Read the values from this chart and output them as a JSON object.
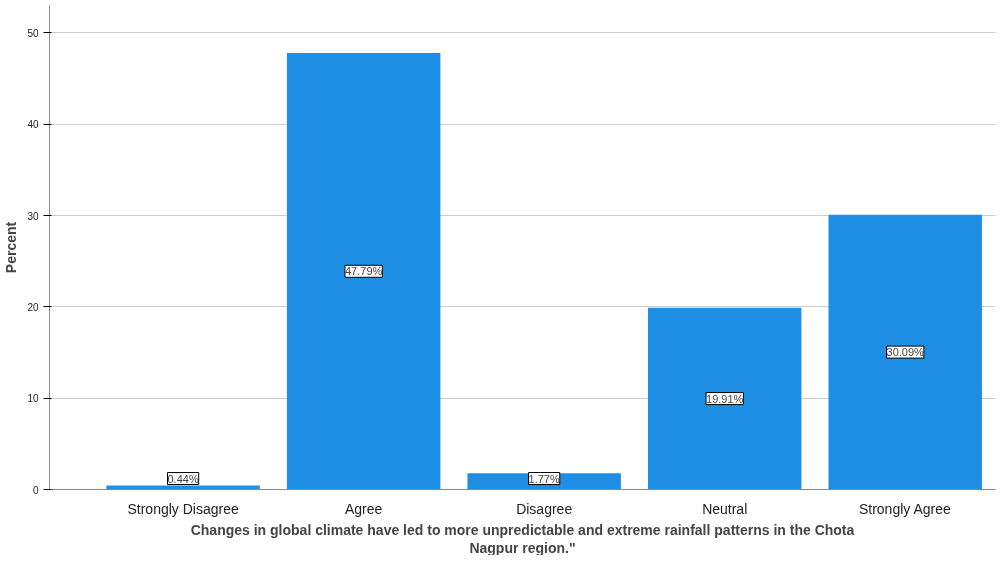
{
  "chart_data": {
    "type": "bar",
    "xlabel": "Changes in global climate have led to more unpredictable and extreme rainfall patterns in the Chota Nagpur region.\"",
    "ylabel": "Percent",
    "categories": [
      "Strongly Disagree",
      "Agree",
      "Disagree",
      "Neutral",
      "Strongly Agree"
    ],
    "values": [
      0.44,
      47.79,
      1.77,
      19.91,
      30.09
    ],
    "value_labels": [
      "0.44%",
      "47.79%",
      "1.77%",
      "19.91%",
      "30.09%"
    ],
    "color": "#1f8fe6",
    "ylim": [
      0,
      53
    ],
    "yticks": [
      0,
      10,
      20,
      30,
      40,
      50
    ],
    "grid": "y"
  }
}
